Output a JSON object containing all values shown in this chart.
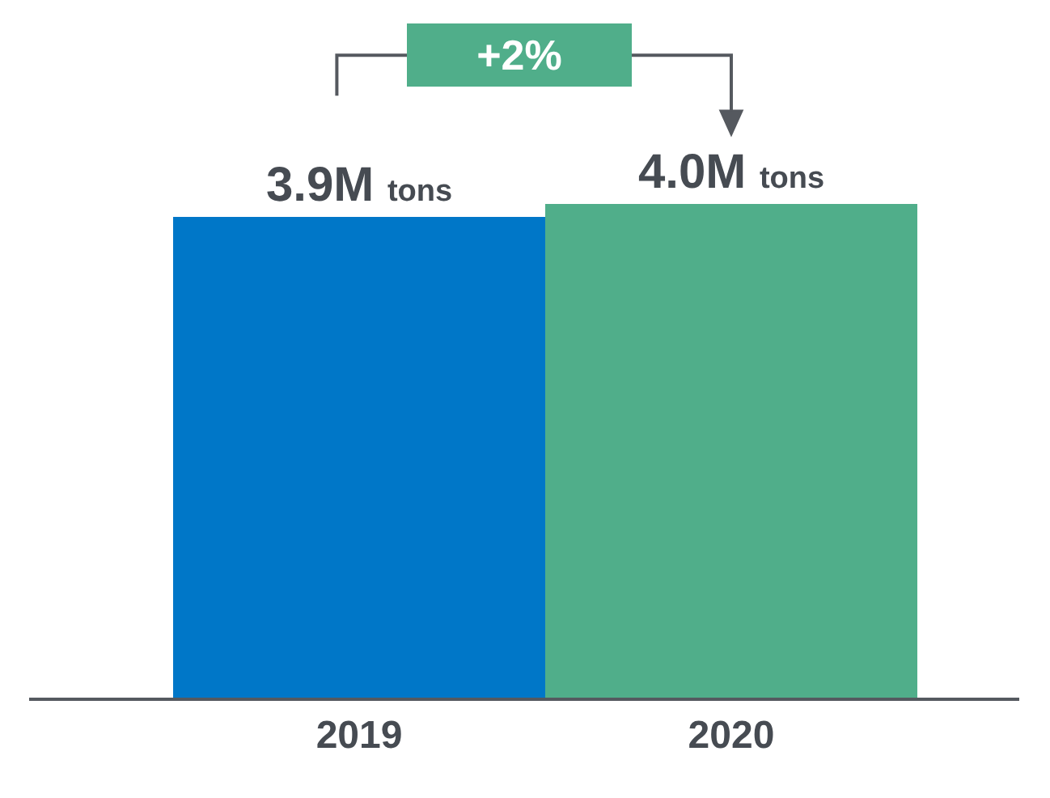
{
  "chart_data": {
    "type": "bar",
    "categories": [
      "2019",
      "2020"
    ],
    "values": [
      3.9,
      4.0
    ],
    "value_labels": [
      "3.9M tons",
      "4.0M tons"
    ],
    "colors": [
      "#0077c8",
      "#50ae8a"
    ],
    "annotations": [
      "+2%"
    ]
  }
}
